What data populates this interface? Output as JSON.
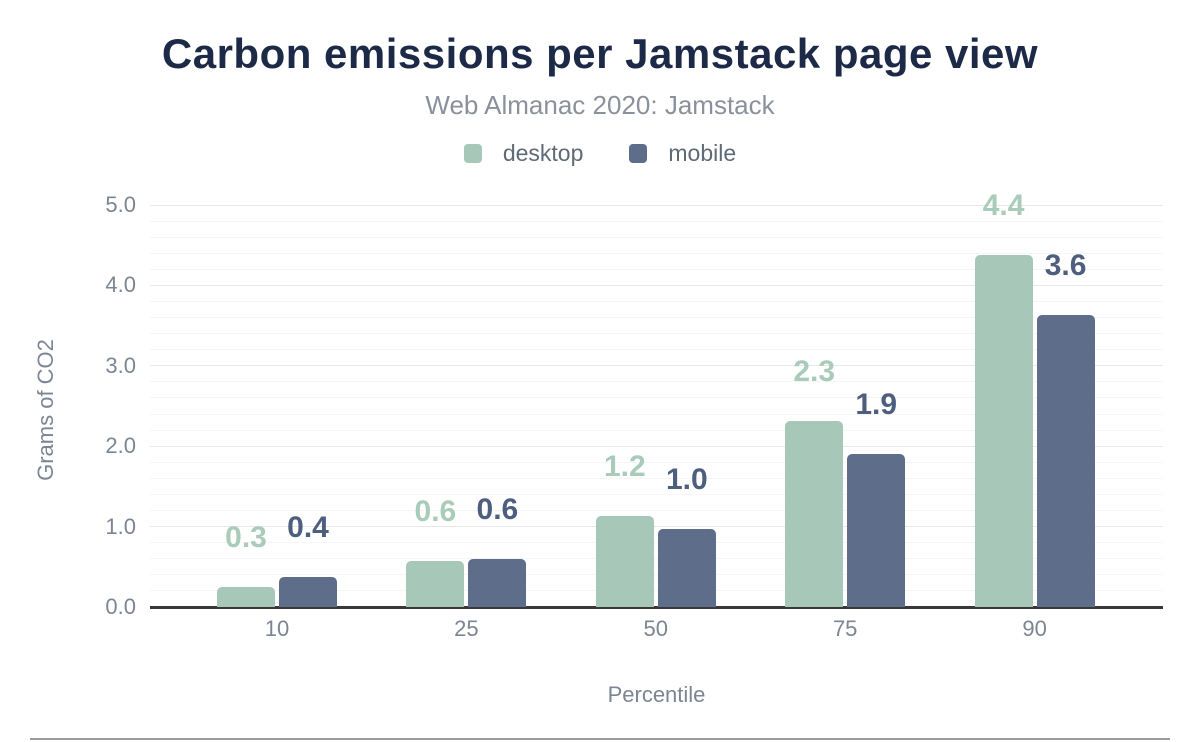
{
  "header": {
    "title": "Carbon emissions per Jamstack page view",
    "subtitle": "Web Almanac 2020: Jamstack"
  },
  "legend": {
    "items": [
      {
        "label": "desktop",
        "color": "#a7c8b8"
      },
      {
        "label": "mobile",
        "color": "#5e6d8a"
      }
    ]
  },
  "axes": {
    "xlabel": "Percentile",
    "ylabel": "Grams of CO2"
  },
  "chart_data": {
    "type": "bar",
    "title": "Carbon emissions per Jamstack page view",
    "subtitle": "Web Almanac 2020: Jamstack",
    "categories": [
      "10",
      "25",
      "50",
      "75",
      "90"
    ],
    "series": [
      {
        "name": "desktop",
        "color": "#a7c8b8",
        "label_color": "#a9cbb9",
        "values": [
          0.3,
          0.6,
          1.2,
          2.3,
          4.4
        ],
        "labels": [
          "0.3",
          "0.6",
          "1.2",
          "2.3",
          "4.4"
        ],
        "values_precise": [
          0.25,
          0.57,
          1.13,
          2.31,
          4.38
        ]
      },
      {
        "name": "mobile",
        "color": "#5e6d8a",
        "label_color": "#4d5e7f",
        "values": [
          0.4,
          0.6,
          1.0,
          1.9,
          3.6
        ],
        "labels": [
          "0.4",
          "0.6",
          "1.0",
          "1.9",
          "3.6"
        ],
        "values_precise": [
          0.37,
          0.6,
          0.97,
          1.9,
          3.63
        ]
      }
    ],
    "xlabel": "Percentile",
    "ylabel": "Grams of CO2",
    "ylim": [
      0,
      5
    ],
    "ytick_labels": [
      "0.0",
      "1.0",
      "2.0",
      "3.0",
      "4.0",
      "5.0"
    ],
    "ytick_step": 1,
    "minor_grid_step": 0.2,
    "grid": "horizontal",
    "legend_position": "top",
    "data_labels": true
  },
  "colors": {
    "title": "#1d2a47",
    "subtitle": "#8a919b",
    "axis_text": "#7c8593",
    "legend_text": "#5f6a77",
    "grid_major": "#e8e8e8",
    "grid_minor": "#f5f5f5",
    "axis_line": "#383838",
    "bottom_rule": "#9b9b9b"
  }
}
